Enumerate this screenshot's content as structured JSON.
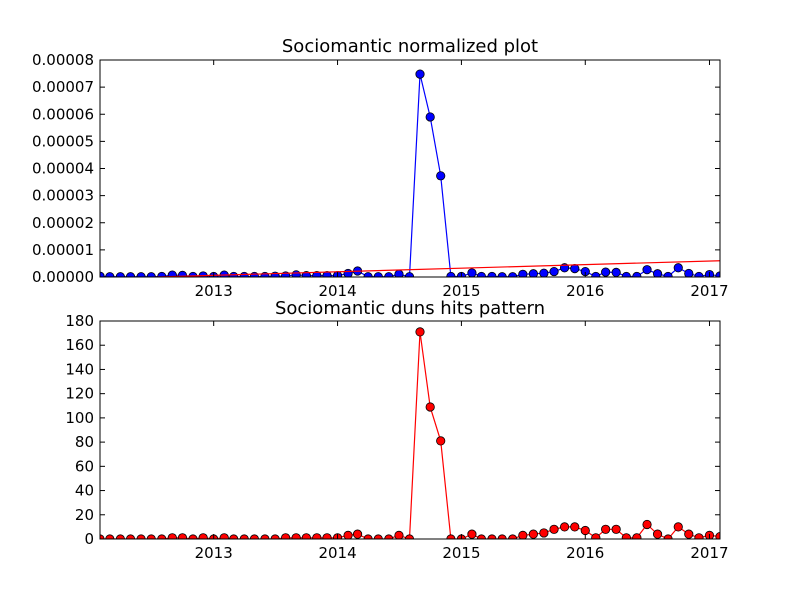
{
  "chart_data": [
    {
      "type": "line",
      "title": "Sociomantic normalized plot",
      "xlabel": "",
      "ylabel": "",
      "xlim": [
        "2012-02-01",
        "2017-02-01"
      ],
      "ylim": [
        0,
        8e-05
      ],
      "x_tick_labels": [
        "2013",
        "2014",
        "2015",
        "2016",
        "2017"
      ],
      "y_tick_labels": [
        "0.00000",
        "0.00001",
        "0.00002",
        "0.00003",
        "0.00004",
        "0.00005",
        "0.00006",
        "0.00007",
        "0.00008"
      ],
      "grid": false,
      "series": [
        {
          "color": "#0000ff",
          "marker": "circle",
          "points": [
            [
              "2012-02-01",
              3e-07
            ],
            [
              "2012-03-01",
              1e-07
            ],
            [
              "2012-04-01",
              1e-07
            ],
            [
              "2012-05-01",
              1e-07
            ],
            [
              "2012-06-01",
              1e-07
            ],
            [
              "2012-07-01",
              1e-07
            ],
            [
              "2012-08-01",
              2e-07
            ],
            [
              "2012-09-01",
              7e-07
            ],
            [
              "2012-10-01",
              6e-07
            ],
            [
              "2012-11-01",
              2e-07
            ],
            [
              "2012-12-01",
              4e-07
            ],
            [
              "2013-01-01",
              2e-07
            ],
            [
              "2013-02-01",
              7e-07
            ],
            [
              "2013-03-01",
              2e-07
            ],
            [
              "2013-04-01",
              2e-07
            ],
            [
              "2013-05-01",
              2e-07
            ],
            [
              "2013-06-01",
              2e-07
            ],
            [
              "2013-07-01",
              3e-07
            ],
            [
              "2013-08-01",
              4e-07
            ],
            [
              "2013-09-01",
              8e-07
            ],
            [
              "2013-10-01",
              5e-07
            ],
            [
              "2013-11-01",
              5e-07
            ],
            [
              "2013-12-01",
              5e-07
            ],
            [
              "2014-01-01",
              5e-07
            ],
            [
              "2014-02-01",
              1.3e-06
            ],
            [
              "2014-03-01",
              2.2e-06
            ],
            [
              "2014-04-01",
              1e-07
            ],
            [
              "2014-05-01",
              1e-07
            ],
            [
              "2014-06-01",
              1e-07
            ],
            [
              "2014-07-01",
              1e-06
            ],
            [
              "2014-08-01",
              1e-07
            ],
            [
              "2014-09-01",
              7.48e-05
            ],
            [
              "2014-10-01",
              5.9e-05
            ],
            [
              "2014-11-01",
              3.73e-05
            ],
            [
              "2014-12-01",
              2e-07
            ],
            [
              "2015-01-01",
              2e-07
            ],
            [
              "2015-02-01",
              1.5e-06
            ],
            [
              "2015-03-01",
              2e-07
            ],
            [
              "2015-04-01",
              2e-07
            ],
            [
              "2015-05-01",
              1e-07
            ],
            [
              "2015-06-01",
              1e-07
            ],
            [
              "2015-07-01",
              1e-06
            ],
            [
              "2015-08-01",
              1.2e-06
            ],
            [
              "2015-09-01",
              1.4e-06
            ],
            [
              "2015-10-01",
              2e-06
            ],
            [
              "2015-11-01",
              3.4e-06
            ],
            [
              "2015-12-01",
              3.1e-06
            ],
            [
              "2016-01-01",
              2e-06
            ],
            [
              "2016-02-01",
              2e-07
            ],
            [
              "2016-03-01",
              1.8e-06
            ],
            [
              "2016-04-01",
              1.7e-06
            ],
            [
              "2016-05-01",
              2e-07
            ],
            [
              "2016-06-01",
              2e-07
            ],
            [
              "2016-07-01",
              2.7e-06
            ],
            [
              "2016-08-01",
              1.2e-06
            ],
            [
              "2016-09-01",
              2e-07
            ],
            [
              "2016-10-01",
              3.4e-06
            ],
            [
              "2016-11-01",
              1.3e-06
            ],
            [
              "2016-12-01",
              2e-07
            ],
            [
              "2017-01-01",
              9e-07
            ],
            [
              "2017-02-01",
              4e-07
            ]
          ]
        },
        {
          "color": "#ff0000",
          "marker": "none",
          "points": [
            [
              "2012-02-01",
              -6e-07
            ],
            [
              "2017-02-01",
              6e-06
            ]
          ]
        }
      ]
    },
    {
      "type": "line",
      "title": "Sociomantic duns hits pattern",
      "xlabel": "",
      "ylabel": "",
      "xlim": [
        "2012-02-01",
        "2017-02-01"
      ],
      "ylim": [
        0,
        180
      ],
      "x_tick_labels": [
        "2013",
        "2014",
        "2015",
        "2016",
        "2017"
      ],
      "y_tick_labels": [
        "0",
        "20",
        "40",
        "60",
        "80",
        "100",
        "120",
        "140",
        "160",
        "180"
      ],
      "grid": false,
      "series": [
        {
          "color": "#ff0000",
          "marker": "circle",
          "points": [
            [
              "2012-02-01",
              0
            ],
            [
              "2012-03-01",
              0
            ],
            [
              "2012-04-01",
              0
            ],
            [
              "2012-05-01",
              0
            ],
            [
              "2012-06-01",
              0
            ],
            [
              "2012-07-01",
              0
            ],
            [
              "2012-08-01",
              0
            ],
            [
              "2012-09-01",
              1
            ],
            [
              "2012-10-01",
              1
            ],
            [
              "2012-11-01",
              0
            ],
            [
              "2012-12-01",
              1
            ],
            [
              "2013-01-01",
              0
            ],
            [
              "2013-02-01",
              1
            ],
            [
              "2013-03-01",
              0
            ],
            [
              "2013-04-01",
              0
            ],
            [
              "2013-05-01",
              0
            ],
            [
              "2013-06-01",
              0
            ],
            [
              "2013-07-01",
              0
            ],
            [
              "2013-08-01",
              1
            ],
            [
              "2013-09-01",
              1
            ],
            [
              "2013-10-01",
              1
            ],
            [
              "2013-11-01",
              1
            ],
            [
              "2013-12-01",
              1
            ],
            [
              "2014-01-01",
              1
            ],
            [
              "2014-02-01",
              3
            ],
            [
              "2014-03-01",
              4
            ],
            [
              "2014-04-01",
              0
            ],
            [
              "2014-05-01",
              0
            ],
            [
              "2014-06-01",
              0
            ],
            [
              "2014-07-01",
              3
            ],
            [
              "2014-08-01",
              0
            ],
            [
              "2014-09-01",
              171
            ],
            [
              "2014-10-01",
              109
            ],
            [
              "2014-11-01",
              81
            ],
            [
              "2014-12-01",
              0
            ],
            [
              "2015-01-01",
              0
            ],
            [
              "2015-02-01",
              4
            ],
            [
              "2015-03-01",
              0
            ],
            [
              "2015-04-01",
              0
            ],
            [
              "2015-05-01",
              0
            ],
            [
              "2015-06-01",
              0
            ],
            [
              "2015-07-01",
              3
            ],
            [
              "2015-08-01",
              4
            ],
            [
              "2015-09-01",
              5
            ],
            [
              "2015-10-01",
              8
            ],
            [
              "2015-11-01",
              10
            ],
            [
              "2015-12-01",
              10
            ],
            [
              "2016-01-01",
              7
            ],
            [
              "2016-02-01",
              1
            ],
            [
              "2016-03-01",
              8
            ],
            [
              "2016-04-01",
              8
            ],
            [
              "2016-05-01",
              1
            ],
            [
              "2016-06-01",
              1
            ],
            [
              "2016-07-01",
              12
            ],
            [
              "2016-08-01",
              4
            ],
            [
              "2016-09-01",
              0
            ],
            [
              "2016-10-01",
              10
            ],
            [
              "2016-11-01",
              4
            ],
            [
              "2016-12-01",
              1
            ],
            [
              "2017-01-01",
              3
            ],
            [
              "2017-02-01",
              2
            ]
          ]
        }
      ]
    }
  ]
}
